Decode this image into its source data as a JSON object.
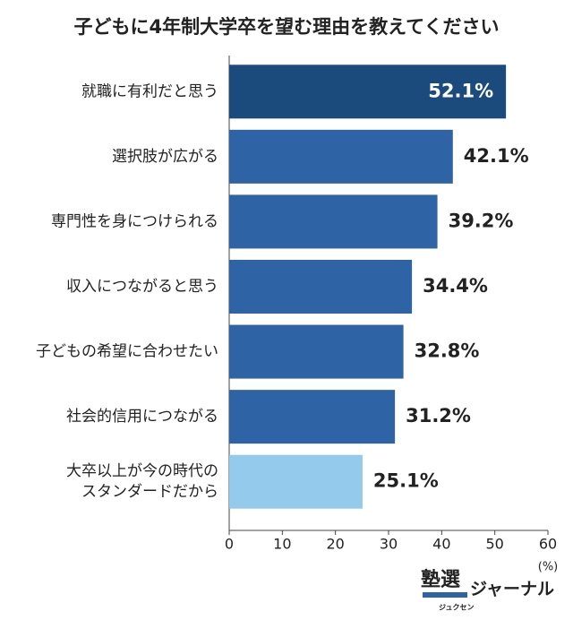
{
  "chart_data": {
    "type": "bar",
    "orientation": "horizontal",
    "title": "子どもに4年制大学卒を望む理由を教えてください",
    "categories": [
      "就職に有利だと思う",
      "選択肢が広がる",
      "専門性を身につけられる",
      "収入につながると思う",
      "子どもの希望に合わせたい",
      "社会的信用につながる",
      "大卒以上が今の時代の\nスタンダードだから"
    ],
    "values": [
      52.1,
      42.1,
      39.2,
      34.4,
      32.8,
      31.2,
      25.1
    ],
    "value_labels": [
      "52.1%",
      "42.1%",
      "39.2%",
      "34.4%",
      "32.8%",
      "31.2%",
      "25.1%"
    ],
    "colors": [
      "#1b4a7c",
      "#2e63a6",
      "#2e63a6",
      "#2e63a6",
      "#2e63a6",
      "#2e63a6",
      "#94caec"
    ],
    "xlim": [
      0,
      60
    ],
    "xticks": [
      0,
      10,
      20,
      30,
      40,
      50,
      60
    ],
    "x_unit": "(%)"
  },
  "logo": {
    "main": "塾選",
    "sub": "ジュクセン",
    "suffix": "ジャーナル"
  }
}
